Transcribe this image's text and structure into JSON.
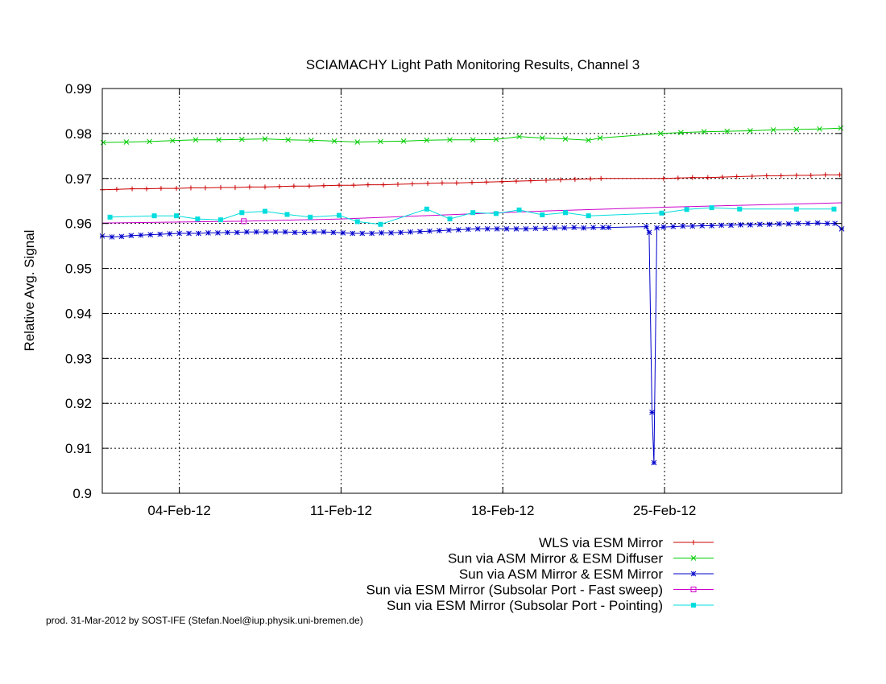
{
  "chart_data": {
    "type": "line",
    "title": "SCIAMACHY Light Path Monitoring Results, Channel 3",
    "xlabel": "",
    "ylabel": "Relative Avg. Signal",
    "xlim": [
      "2012-01-31T16:00",
      "2012-03-03T16:00"
    ],
    "ylim": [
      0.9,
      0.99
    ],
    "y_ticks": [
      0.9,
      0.91,
      0.92,
      0.93,
      0.94,
      0.95,
      0.96,
      0.97,
      0.98,
      0.99
    ],
    "x_ticks": [
      {
        "date": "2012-02-04",
        "label": "04-Feb-12"
      },
      {
        "date": "2012-02-11",
        "label": "11-Feb-12"
      },
      {
        "date": "2012-02-18",
        "label": "18-Feb-12"
      },
      {
        "date": "2012-02-25",
        "label": "25-Feb-12"
      }
    ],
    "grid": true,
    "legend_position": "bottom-right, below plot",
    "footer": "prod. 31-Mar-2012 by SOST-IFE (Stefan.Noel@iup.physik.uni-bremen.de)",
    "series": [
      {
        "name": "WLS via ESM Mirror",
        "color": "#cc0000",
        "marker": "plus",
        "line": true,
        "points": [
          [
            "2012-01-31T16:00",
            0.9675
          ],
          [
            "2012-02-01T07:00",
            0.9676
          ],
          [
            "2012-02-01T23:00",
            0.9677
          ],
          [
            "2012-02-02T14:00",
            0.9677
          ],
          [
            "2012-02-03T05:00",
            0.9678
          ],
          [
            "2012-02-03T21:00",
            0.9678
          ],
          [
            "2012-02-04T12:00",
            0.9679
          ],
          [
            "2012-02-05T03:00",
            0.9679
          ],
          [
            "2012-02-05T19:00",
            0.968
          ],
          [
            "2012-02-06T10:00",
            0.968
          ],
          [
            "2012-02-07T01:00",
            0.9681
          ],
          [
            "2012-02-07T17:00",
            0.9681
          ],
          [
            "2012-02-08T08:00",
            0.9682
          ],
          [
            "2012-02-08T23:00",
            0.9683
          ],
          [
            "2012-02-09T15:00",
            0.9683
          ],
          [
            "2012-02-10T06:00",
            0.9684
          ],
          [
            "2012-02-10T22:00",
            0.9685
          ],
          [
            "2012-02-11T13:00",
            0.9685
          ],
          [
            "2012-02-12T04:00",
            0.9686
          ],
          [
            "2012-02-12T20:00",
            0.9686
          ],
          [
            "2012-02-13T11:00",
            0.9687
          ],
          [
            "2012-02-14T02:00",
            0.9688
          ],
          [
            "2012-02-14T18:00",
            0.9689
          ],
          [
            "2012-02-15T09:00",
            0.969
          ],
          [
            "2012-02-16T00:00",
            0.969
          ],
          [
            "2012-02-16T16:00",
            0.9691
          ],
          [
            "2012-02-17T07:00",
            0.9692
          ],
          [
            "2012-02-17T23:00",
            0.9693
          ],
          [
            "2012-02-18T14:00",
            0.9694
          ],
          [
            "2012-02-19T05:00",
            0.9695
          ],
          [
            "2012-02-19T21:00",
            0.9696
          ],
          [
            "2012-02-20T12:00",
            0.9697
          ],
          [
            "2012-02-21T03:00",
            0.9698
          ],
          [
            "2012-02-21T19:00",
            0.9699
          ],
          [
            "2012-02-22T06:00",
            0.97
          ],
          [
            "2012-02-24T23:00",
            0.97
          ],
          [
            "2012-02-25T14:00",
            0.9701
          ],
          [
            "2012-02-26T05:00",
            0.9702
          ],
          [
            "2012-02-26T21:00",
            0.9702
          ],
          [
            "2012-02-27T12:00",
            0.9703
          ],
          [
            "2012-02-28T03:00",
            0.9704
          ],
          [
            "2012-02-28T19:00",
            0.9705
          ],
          [
            "2012-02-29T10:00",
            0.9706
          ],
          [
            "2012-03-01T01:00",
            0.9706
          ],
          [
            "2012-03-01T17:00",
            0.9707
          ],
          [
            "2012-03-02T08:00",
            0.9707
          ],
          [
            "2012-03-02T23:00",
            0.9708
          ],
          [
            "2012-03-03T14:00",
            0.9708
          ]
        ]
      },
      {
        "name": "Sun via ASM Mirror & ESM Diffuser",
        "color": "#00cc00",
        "marker": "cross",
        "line": true,
        "points": [
          [
            "2012-01-31T17:00",
            0.978
          ],
          [
            "2012-02-01T17:00",
            0.9781
          ],
          [
            "2012-02-02T17:00",
            0.9782
          ],
          [
            "2012-02-03T17:00",
            0.9784
          ],
          [
            "2012-02-04T17:00",
            0.9786
          ],
          [
            "2012-02-05T17:00",
            0.9786
          ],
          [
            "2012-02-06T17:00",
            0.9787
          ],
          [
            "2012-02-07T17:00",
            0.9788
          ],
          [
            "2012-02-08T17:00",
            0.9786
          ],
          [
            "2012-02-09T17:00",
            0.9785
          ],
          [
            "2012-02-10T17:00",
            0.9783
          ],
          [
            "2012-02-11T17:00",
            0.9781
          ],
          [
            "2012-02-12T17:00",
            0.9782
          ],
          [
            "2012-02-13T17:00",
            0.9783
          ],
          [
            "2012-02-14T17:00",
            0.9785
          ],
          [
            "2012-02-15T17:00",
            0.9786
          ],
          [
            "2012-02-16T17:00",
            0.9786
          ],
          [
            "2012-02-17T17:00",
            0.9787
          ],
          [
            "2012-02-18T17:00",
            0.9793
          ],
          [
            "2012-02-19T17:00",
            0.979
          ],
          [
            "2012-02-20T17:00",
            0.9788
          ],
          [
            "2012-02-21T17:00",
            0.9785
          ],
          [
            "2012-02-22T05:00",
            0.979
          ],
          [
            "2012-02-24T20:00",
            0.98
          ],
          [
            "2012-02-25T17:00",
            0.9802
          ],
          [
            "2012-02-26T17:00",
            0.9804
          ],
          [
            "2012-02-27T17:00",
            0.9805
          ],
          [
            "2012-02-28T17:00",
            0.9806
          ],
          [
            "2012-02-29T17:00",
            0.9808
          ],
          [
            "2012-03-01T17:00",
            0.9809
          ],
          [
            "2012-03-02T17:00",
            0.981
          ],
          [
            "2012-03-03T15:00",
            0.9812
          ]
        ]
      },
      {
        "name": "Sun via ASM Mirror & ESM Mirror",
        "color": "#0000cc",
        "marker": "star",
        "line": true,
        "points": [
          [
            "2012-01-31T16:00",
            0.9572
          ],
          [
            "2012-02-01T02:00",
            0.957
          ],
          [
            "2012-02-01T12:00",
            0.9571
          ],
          [
            "2012-02-01T22:00",
            0.9573
          ],
          [
            "2012-02-02T08:00",
            0.9574
          ],
          [
            "2012-02-02T18:00",
            0.9575
          ],
          [
            "2012-02-03T04:00",
            0.9576
          ],
          [
            "2012-02-03T14:00",
            0.9577
          ],
          [
            "2012-02-04T00:00",
            0.9578
          ],
          [
            "2012-02-04T10:00",
            0.9578
          ],
          [
            "2012-02-04T20:00",
            0.9578
          ],
          [
            "2012-02-05T06:00",
            0.9579
          ],
          [
            "2012-02-05T16:00",
            0.9579
          ],
          [
            "2012-02-06T02:00",
            0.958
          ],
          [
            "2012-02-06T12:00",
            0.958
          ],
          [
            "2012-02-06T22:00",
            0.9581
          ],
          [
            "2012-02-07T08:00",
            0.9581
          ],
          [
            "2012-02-07T18:00",
            0.9581
          ],
          [
            "2012-02-08T04:00",
            0.9581
          ],
          [
            "2012-02-08T14:00",
            0.9581
          ],
          [
            "2012-02-09T00:00",
            0.958
          ],
          [
            "2012-02-09T10:00",
            0.958
          ],
          [
            "2012-02-09T20:00",
            0.9581
          ],
          [
            "2012-02-10T06:00",
            0.9581
          ],
          [
            "2012-02-10T16:00",
            0.958
          ],
          [
            "2012-02-11T02:00",
            0.9579
          ],
          [
            "2012-02-11T12:00",
            0.9578
          ],
          [
            "2012-02-11T22:00",
            0.9578
          ],
          [
            "2012-02-12T08:00",
            0.9578
          ],
          [
            "2012-02-12T18:00",
            0.9579
          ],
          [
            "2012-02-13T04:00",
            0.9579
          ],
          [
            "2012-02-13T14:00",
            0.958
          ],
          [
            "2012-02-14T00:00",
            0.9581
          ],
          [
            "2012-02-14T10:00",
            0.9582
          ],
          [
            "2012-02-14T20:00",
            0.9583
          ],
          [
            "2012-02-15T06:00",
            0.9584
          ],
          [
            "2012-02-15T16:00",
            0.9585
          ],
          [
            "2012-02-16T02:00",
            0.9586
          ],
          [
            "2012-02-16T12:00",
            0.9587
          ],
          [
            "2012-02-16T22:00",
            0.9588
          ],
          [
            "2012-02-17T08:00",
            0.9588
          ],
          [
            "2012-02-17T18:00",
            0.9588
          ],
          [
            "2012-02-18T04:00",
            0.9588
          ],
          [
            "2012-02-18T14:00",
            0.9588
          ],
          [
            "2012-02-19T00:00",
            0.9588
          ],
          [
            "2012-02-19T10:00",
            0.9589
          ],
          [
            "2012-02-19T20:00",
            0.9589
          ],
          [
            "2012-02-20T06:00",
            0.959
          ],
          [
            "2012-02-20T16:00",
            0.959
          ],
          [
            "2012-02-21T02:00",
            0.9591
          ],
          [
            "2012-02-21T12:00",
            0.959
          ],
          [
            "2012-02-21T22:00",
            0.9591
          ],
          [
            "2012-02-22T08:00",
            0.9591
          ],
          [
            "2012-02-22T14:00",
            0.9591
          ],
          [
            "2012-02-24T05:00",
            0.9593
          ],
          [
            "2012-02-24T08:00",
            0.958
          ],
          [
            "2012-02-24T11:00",
            0.918
          ],
          [
            "2012-02-24T13:00",
            0.9068
          ],
          [
            "2012-02-24T16:00",
            0.959
          ],
          [
            "2012-02-24T23:00",
            0.9592
          ],
          [
            "2012-02-25T09:00",
            0.9593
          ],
          [
            "2012-02-25T19:00",
            0.9594
          ],
          [
            "2012-02-26T05:00",
            0.9594
          ],
          [
            "2012-02-26T15:00",
            0.9595
          ],
          [
            "2012-02-27T01:00",
            0.9595
          ],
          [
            "2012-02-27T11:00",
            0.9596
          ],
          [
            "2012-02-27T21:00",
            0.9596
          ],
          [
            "2012-02-28T07:00",
            0.9597
          ],
          [
            "2012-02-28T17:00",
            0.9597
          ],
          [
            "2012-02-29T03:00",
            0.9598
          ],
          [
            "2012-02-29T13:00",
            0.9598
          ],
          [
            "2012-02-29T23:00",
            0.9599
          ],
          [
            "2012-03-01T09:00",
            0.9599
          ],
          [
            "2012-03-01T19:00",
            0.96
          ],
          [
            "2012-03-02T05:00",
            0.96
          ],
          [
            "2012-03-02T15:00",
            0.9601
          ],
          [
            "2012-03-03T01:00",
            0.96
          ],
          [
            "2012-03-03T09:00",
            0.96
          ],
          [
            "2012-03-03T16:00",
            0.9588
          ]
        ]
      },
      {
        "name": "Sun via ESM Mirror (Subsolar Port - Fast sweep)",
        "color": "#cc00cc",
        "marker": "square",
        "line": true,
        "marker_points": [
          [
            "2012-02-06T19:00",
            0.9605
          ]
        ],
        "points": [
          [
            "2012-01-31T16:00",
            0.9601
          ],
          [
            "2012-02-06T19:00",
            0.9605
          ],
          [
            "2012-02-11T00:00",
            0.961
          ],
          [
            "2012-02-15T00:00",
            0.9618
          ],
          [
            "2012-02-20T00:00",
            0.9628
          ],
          [
            "2012-02-25T00:00",
            0.9636
          ],
          [
            "2012-03-03T16:00",
            0.9646
          ]
        ]
      },
      {
        "name": "Sun via ESM Mirror (Subsolar Port - Pointing)",
        "color": "#00dddd",
        "marker": "filled-square",
        "line": true,
        "points": [
          [
            "2012-02-01T00:00",
            0.9614
          ],
          [
            "2012-02-02T22:00",
            0.9617
          ],
          [
            "2012-02-03T21:00",
            0.9617
          ],
          [
            "2012-02-04T19:00",
            0.961
          ],
          [
            "2012-02-05T19:00",
            0.9608
          ],
          [
            "2012-02-06T17:00",
            0.9624
          ],
          [
            "2012-02-07T17:00",
            0.9627
          ],
          [
            "2012-02-08T16:00",
            0.962
          ],
          [
            "2012-02-09T16:00",
            0.9614
          ],
          [
            "2012-02-10T22:00",
            0.9618
          ],
          [
            "2012-02-11T17:00",
            0.9604
          ],
          [
            "2012-02-12T17:00",
            0.9598
          ],
          [
            "2012-02-14T17:00",
            0.9632
          ],
          [
            "2012-02-15T17:00",
            0.961
          ],
          [
            "2012-02-16T17:00",
            0.9624
          ],
          [
            "2012-02-17T17:00",
            0.9622
          ],
          [
            "2012-02-18T17:00",
            0.963
          ],
          [
            "2012-02-19T17:00",
            0.9619
          ],
          [
            "2012-02-20T17:00",
            0.9624
          ],
          [
            "2012-02-21T17:00",
            0.9617
          ],
          [
            "2012-02-24T21:00",
            0.9623
          ],
          [
            "2012-02-25T23:00",
            0.9631
          ],
          [
            "2012-02-27T01:00",
            0.9635
          ],
          [
            "2012-02-28T06:00",
            0.9632
          ],
          [
            "2012-03-01T17:00",
            0.9632
          ],
          [
            "2012-03-03T08:00",
            0.9632
          ]
        ]
      }
    ]
  }
}
